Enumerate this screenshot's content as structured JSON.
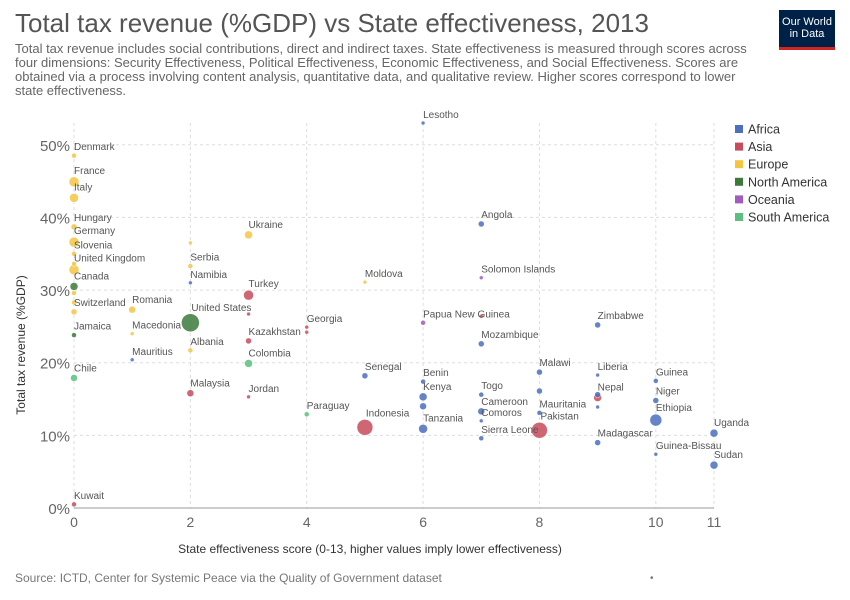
{
  "header": {
    "title": "Total tax revenue (%GDP) vs State effectiveness, 2013",
    "subtitle": "Total tax revenue includes social contributions, direct and indirect taxes. State effectiveness is measured through scores across four dimensions: Security Effectiveness, Political Effectiveness, Economic Effectiveness, and Social Effectiveness. Scores are obtained via a process involving content analysis, quantitative data, and qualitative review. Higher scores correspond to lower state effectiveness."
  },
  "logo": {
    "line1": "Our World",
    "line2": "in Data"
  },
  "footer": {
    "source": "Source: ICTD, Center for Systemic Peace via the Quality of Government dataset",
    "dot": "•"
  },
  "chart_data": {
    "type": "scatter",
    "title": "Total tax revenue (%GDP) vs State effectiveness, 2013",
    "xlabel": "State effectiveness score (0-13, higher values imply lower effectiveness)",
    "ylabel": "Total tax revenue (%GDP)",
    "xlim": [
      0,
      11
    ],
    "ylim": [
      0,
      53
    ],
    "x_ticks": [
      0,
      2,
      4,
      6,
      8,
      10,
      11
    ],
    "y_ticks": [
      {
        "value": 0,
        "label": "0%"
      },
      {
        "value": 10,
        "label": "10%"
      },
      {
        "value": 20,
        "label": "20%"
      },
      {
        "value": 30,
        "label": "30%"
      },
      {
        "value": 40,
        "label": "40%"
      },
      {
        "value": 50,
        "label": "50%"
      }
    ],
    "grid": true,
    "legend_position": "right",
    "legend": [
      {
        "name": "Africa",
        "color": "#4c6fbf"
      },
      {
        "name": "Asia",
        "color": "#c84b5c"
      },
      {
        "name": "Europe",
        "color": "#f5c542"
      },
      {
        "name": "North America",
        "color": "#3b7a3a"
      },
      {
        "name": "Oceania",
        "color": "#a35bbf"
      },
      {
        "name": "South America",
        "color": "#5cbf7f"
      }
    ],
    "points": [
      {
        "label": "Denmark",
        "x": 0,
        "y": 48.5,
        "region": "Europe",
        "size": 2.5
      },
      {
        "label": "France",
        "x": 0,
        "y": 44.9,
        "region": "Europe",
        "size": 5
      },
      {
        "label": "Italy",
        "x": 0,
        "y": 42.7,
        "region": "Europe",
        "size": 4.5
      },
      {
        "label": "Hungary",
        "x": 0,
        "y": 38.7,
        "region": "Europe",
        "size": 3
      },
      {
        "label": "Germany",
        "x": 0,
        "y": 36.6,
        "region": "Europe",
        "size": 5
      },
      {
        "label": "Slovenia",
        "x": 0,
        "y": 35.0,
        "region": "Europe",
        "size": 2.5
      },
      {
        "label": "United Kingdom",
        "x": 0,
        "y": 32.8,
        "region": "Europe",
        "size": 5
      },
      {
        "label": "Canada",
        "x": 0,
        "y": 30.5,
        "region": "North America",
        "size": 4
      },
      {
        "label": "Switzerland",
        "x": 0,
        "y": 27.0,
        "region": "Europe",
        "size": 3
      },
      {
        "label": "Jamaica",
        "x": 0,
        "y": 23.8,
        "region": "North America",
        "size": 2.5
      },
      {
        "label": "Chile",
        "x": 0,
        "y": 17.9,
        "region": "South America",
        "size": 3.5
      },
      {
        "label": "Kuwait",
        "x": 0,
        "y": 0.5,
        "region": "Asia",
        "size": 2.5
      },
      {
        "label": "Romania",
        "x": 1,
        "y": 27.3,
        "region": "Europe",
        "size": 3.5
      },
      {
        "label": "Macedonia",
        "x": 1,
        "y": 24.0,
        "region": "Europe",
        "size": 2
      },
      {
        "label": "Mauritius",
        "x": 1,
        "y": 20.4,
        "region": "Africa",
        "size": 2
      },
      {
        "label": "Serbia",
        "x": 2,
        "y": 33.3,
        "region": "Europe",
        "size": 2.5
      },
      {
        "label": "Namibia",
        "x": 2,
        "y": 31.0,
        "region": "Africa",
        "size": 2
      },
      {
        "label": "United States",
        "x": 2,
        "y": 25.5,
        "region": "North America",
        "size": 9
      },
      {
        "label": "Albania",
        "x": 2,
        "y": 21.7,
        "region": "Europe",
        "size": 2.5
      },
      {
        "label": "Malaysia",
        "x": 2,
        "y": 15.8,
        "region": "Asia",
        "size": 3.5
      },
      {
        "label": "Ukraine",
        "x": 3,
        "y": 37.6,
        "region": "Europe",
        "size": 4
      },
      {
        "label": "Turkey",
        "x": 3,
        "y": 29.3,
        "region": "Asia",
        "size": 5
      },
      {
        "label": "Kazakhstan",
        "x": 3,
        "y": 23.0,
        "region": "Asia",
        "size": 3
      },
      {
        "label": "Colombia",
        "x": 3,
        "y": 19.9,
        "region": "South America",
        "size": 4
      },
      {
        "label": "Jordan",
        "x": 3,
        "y": 15.3,
        "region": "Asia",
        "size": 2
      },
      {
        "label": "Georgia",
        "x": 4,
        "y": 24.9,
        "region": "Asia",
        "size": 2
      },
      {
        "label": "Paraguay",
        "x": 4,
        "y": 12.9,
        "region": "South America",
        "size": 2.5
      },
      {
        "label": "Moldova",
        "x": 5,
        "y": 31.1,
        "region": "Europe",
        "size": 2
      },
      {
        "label": "Senegal",
        "x": 5,
        "y": 18.2,
        "region": "Africa",
        "size": 3
      },
      {
        "label": "Indonesia",
        "x": 5,
        "y": 11.1,
        "region": "Asia",
        "size": 8
      },
      {
        "label": "Lesotho",
        "x": 6,
        "y": 53.0,
        "region": "Africa",
        "size": 2
      },
      {
        "label": "Papua New Guinea",
        "x": 6,
        "y": 25.5,
        "region": "Oceania",
        "size": 2.5
      },
      {
        "label": "Benin",
        "x": 6,
        "y": 17.4,
        "region": "Africa",
        "size": 2.5
      },
      {
        "label": "Kenya",
        "x": 6,
        "y": 15.3,
        "region": "Africa",
        "size": 4
      },
      {
        "label": "Tanzania",
        "x": 6,
        "y": 10.9,
        "region": "Africa",
        "size": 4.5
      },
      {
        "label": "Angola",
        "x": 7,
        "y": 39.1,
        "region": "Africa",
        "size": 3
      },
      {
        "label": "Solomon Islands",
        "x": 7,
        "y": 31.7,
        "region": "Oceania",
        "size": 2
      },
      {
        "label": "Mozambique",
        "x": 7,
        "y": 22.6,
        "region": "Africa",
        "size": 3
      },
      {
        "label": "Togo",
        "x": 7,
        "y": 15.6,
        "region": "Africa",
        "size": 2.5
      },
      {
        "label": "Cameroon",
        "x": 7,
        "y": 13.3,
        "region": "Africa",
        "size": 3.5
      },
      {
        "label": "Comoros",
        "x": 7,
        "y": 12.0,
        "region": "Africa",
        "size": 2
      },
      {
        "label": "Sierra Leone",
        "x": 7,
        "y": 9.6,
        "region": "Africa",
        "size": 2.5
      },
      {
        "label": "Malawi",
        "x": 8,
        "y": 18.7,
        "region": "Africa",
        "size": 3
      },
      {
        "label": "Mauritania",
        "x": 8,
        "y": 13.1,
        "region": "Africa",
        "size": 2.5
      },
      {
        "label": "Pakistan",
        "x": 8,
        "y": 10.7,
        "region": "Asia",
        "size": 8
      },
      {
        "label": "Zimbabwe",
        "x": 9,
        "y": 25.2,
        "region": "Africa",
        "size": 3
      },
      {
        "label": "Liberia",
        "x": 9,
        "y": 18.3,
        "region": "Africa",
        "size": 2
      },
      {
        "label": "Nepal",
        "x": 9,
        "y": 15.2,
        "region": "Asia",
        "size": 4
      },
      {
        "label": "Madagascar",
        "x": 9,
        "y": 9.0,
        "region": "Africa",
        "size": 3
      },
      {
        "label": "Guinea",
        "x": 10,
        "y": 17.5,
        "region": "Africa",
        "size": 2.5
      },
      {
        "label": "Niger",
        "x": 10,
        "y": 14.8,
        "region": "Africa",
        "size": 3
      },
      {
        "label": "Ethiopia",
        "x": 10,
        "y": 12.1,
        "region": "Africa",
        "size": 6
      },
      {
        "label": "Guinea-Bissau",
        "x": 10,
        "y": 7.4,
        "region": "Africa",
        "size": 2
      },
      {
        "label": "Uganda",
        "x": 11,
        "y": 10.3,
        "region": "Africa",
        "size": 4
      },
      {
        "label": "Sudan",
        "x": 11,
        "y": 5.9,
        "region": "Africa",
        "size": 4
      }
    ],
    "unlabeled_points": [
      {
        "x": 0,
        "y": 33.6,
        "region": "Europe",
        "size": 2.5
      },
      {
        "x": 0,
        "y": 29.6,
        "region": "Europe",
        "size": 2.5
      },
      {
        "x": 0,
        "y": 28.3,
        "region": "Europe",
        "size": 2.5
      },
      {
        "x": 2,
        "y": 36.5,
        "region": "Europe",
        "size": 2
      },
      {
        "x": 3,
        "y": 26.7,
        "region": "Asia",
        "size": 2
      },
      {
        "x": 4,
        "y": 24.2,
        "region": "Asia",
        "size": 2
      },
      {
        "x": 6,
        "y": 14.0,
        "region": "Africa",
        "size": 3.5
      },
      {
        "x": 7,
        "y": 26.4,
        "region": "Asia",
        "size": 2
      },
      {
        "x": 8,
        "y": 16.1,
        "region": "Africa",
        "size": 3
      },
      {
        "x": 9,
        "y": 15.6,
        "region": "Africa",
        "size": 3
      },
      {
        "x": 9,
        "y": 13.9,
        "region": "Africa",
        "size": 2
      }
    ]
  }
}
